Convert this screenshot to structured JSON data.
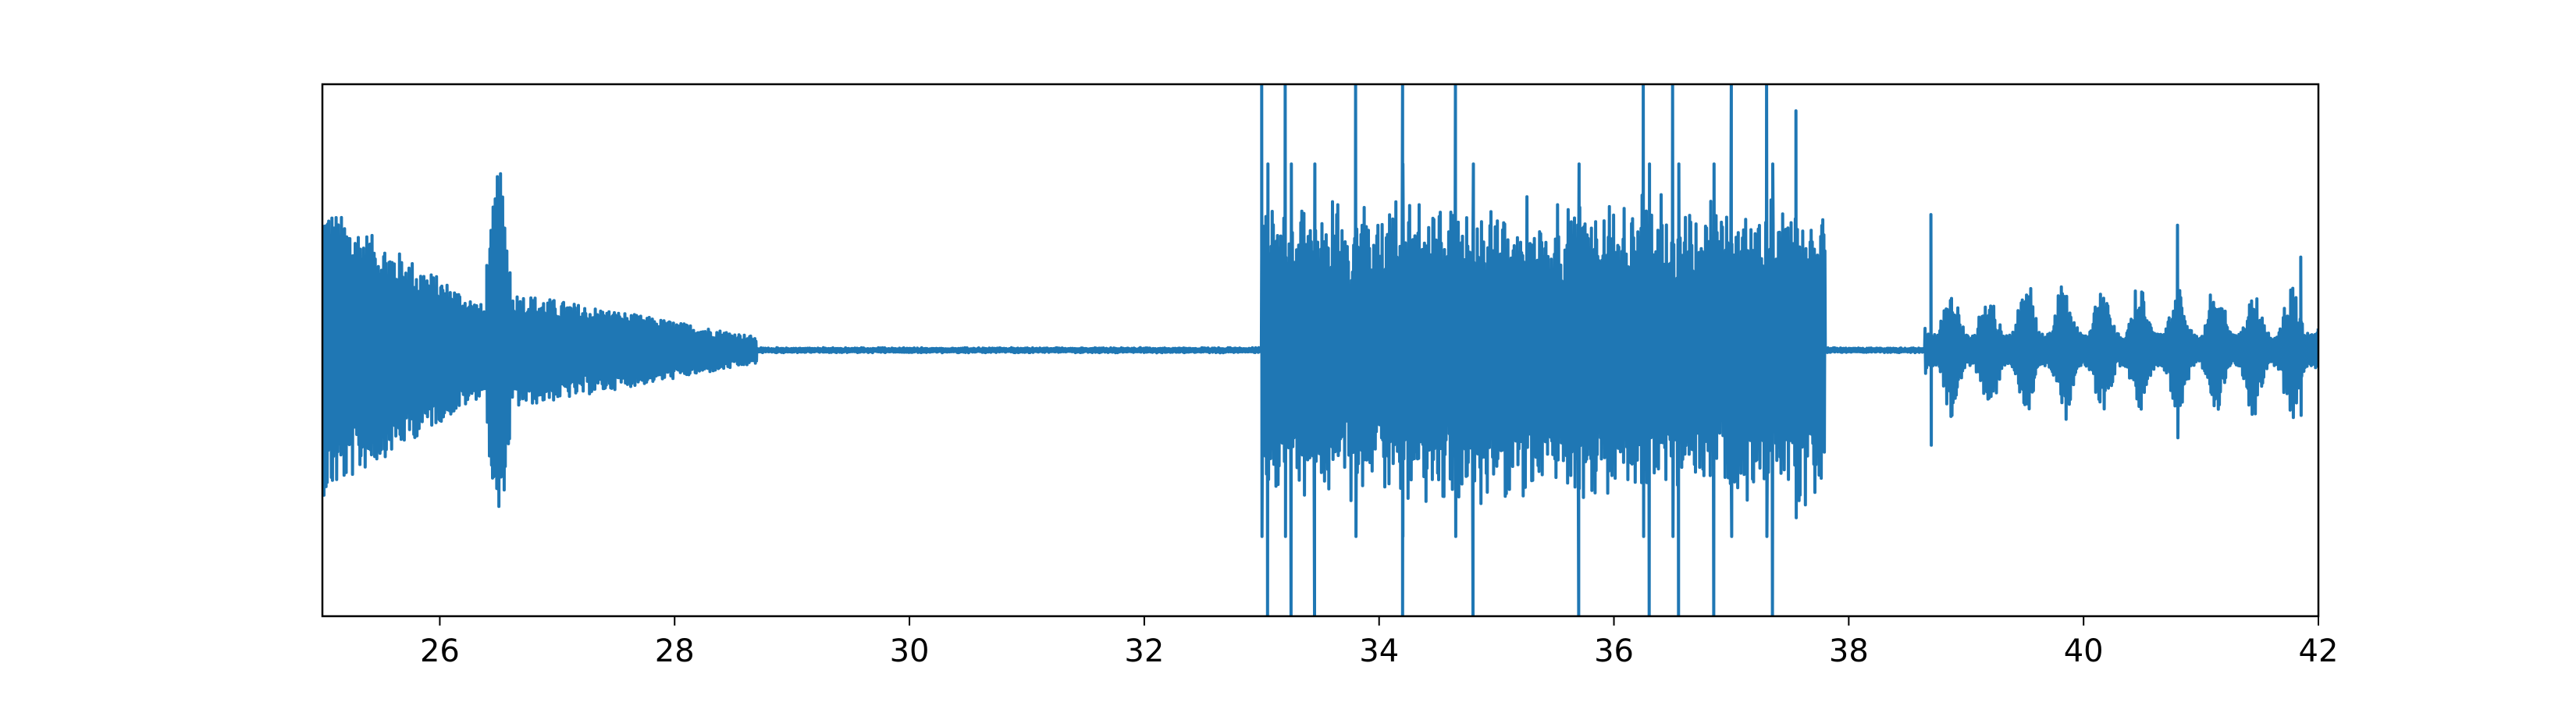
{
  "chart_data": {
    "type": "line",
    "title": "",
    "xlabel": "",
    "ylabel": "",
    "xlim": [
      25,
      42
    ],
    "ylim": [
      -1,
      1
    ],
    "xticks": [
      26,
      28,
      30,
      32,
      34,
      36,
      38,
      40,
      42
    ],
    "xtick_labels": [
      "26",
      "28",
      "30",
      "32",
      "34",
      "36",
      "38",
      "40",
      "42"
    ],
    "yticks_visible": false,
    "grid": false,
    "legend": "none",
    "series": [
      {
        "color": "#1f77b4",
        "segments": [
          {
            "x_start": 25.0,
            "x_end": 26.4,
            "amplitude_max": 0.55,
            "amplitude_min": 0.16,
            "shape": "decay"
          },
          {
            "x_start": 26.4,
            "x_end": 26.6,
            "amplitude_max": 0.69,
            "amplitude_min": 0.3,
            "shape": "spike"
          },
          {
            "x_start": 26.6,
            "x_end": 28.7,
            "amplitude_max": 0.22,
            "amplitude_min": 0.05,
            "shape": "decay"
          },
          {
            "x_start": 28.7,
            "x_end": 33.0,
            "amplitude_max": 0.01,
            "amplitude_min": 0.005,
            "shape": "flat"
          },
          {
            "x_start": 33.0,
            "x_end": 37.8,
            "amplitude_max": 1.0,
            "amplitude_min": 0.35,
            "shape": "burst"
          },
          {
            "x_start": 37.8,
            "x_end": 38.65,
            "amplitude_max": 0.01,
            "amplitude_min": 0.005,
            "shape": "flat"
          },
          {
            "x_start": 38.65,
            "x_end": 42.0,
            "amplitude_max": 0.52,
            "amplitude_min": 0.06,
            "shape": "clusters"
          }
        ],
        "peaks": [
          {
            "x": 33.0,
            "y": 1.0
          },
          {
            "x": 33.05,
            "y": -1.0
          },
          {
            "x": 33.2,
            "y": 1.0
          },
          {
            "x": 33.25,
            "y": -1.0
          },
          {
            "x": 33.45,
            "y": -1.0
          },
          {
            "x": 33.8,
            "y": 1.0
          },
          {
            "x": 34.2,
            "y": 1.0
          },
          {
            "x": 34.2,
            "y": -1.0
          },
          {
            "x": 34.65,
            "y": 1.0
          },
          {
            "x": 34.8,
            "y": -1.0
          },
          {
            "x": 35.7,
            "y": -1.0
          },
          {
            "x": 36.25,
            "y": 1.0
          },
          {
            "x": 36.3,
            "y": -1.0
          },
          {
            "x": 36.5,
            "y": 1.0
          },
          {
            "x": 36.55,
            "y": -1.0
          },
          {
            "x": 36.85,
            "y": -1.0
          },
          {
            "x": 37.0,
            "y": 1.0
          },
          {
            "x": 37.3,
            "y": 1.0
          },
          {
            "x": 37.35,
            "y": -1.0
          },
          {
            "x": 37.55,
            "y": 0.9
          },
          {
            "x": 38.7,
            "y": 0.51
          },
          {
            "x": 40.8,
            "y": 0.47
          },
          {
            "x": 41.85,
            "y": 0.35
          }
        ]
      }
    ]
  }
}
